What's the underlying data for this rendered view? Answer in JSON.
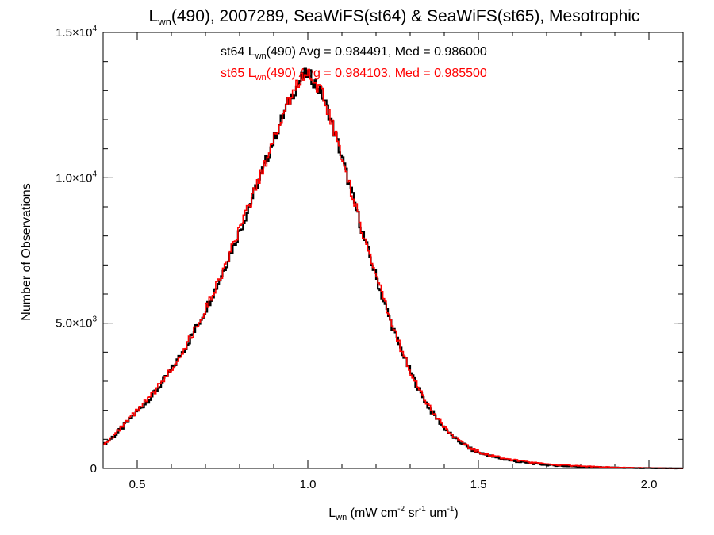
{
  "chart_data": {
    "type": "line",
    "title_parts": {
      "prefix": "L",
      "sub": "wn",
      "rest": "(490), 2007289, SeaWiFS(st64) & SeaWiFS(st65), Mesotrophic"
    },
    "xlabel_parts": {
      "base": "L",
      "sub": "wn",
      "rest1": " (mW cm",
      "sup1": "-2",
      "rest2": " sr",
      "sup2": "-1",
      "rest3": " um",
      "sup3": "-1",
      "rest4": ")"
    },
    "ylabel": "Number of Observations",
    "xlim": [
      0.4,
      2.1
    ],
    "ylim": [
      0,
      15000
    ],
    "x_ticks": [
      {
        "value": 0.5,
        "label": "0.5"
      },
      {
        "value": 1.0,
        "label": "1.0"
      },
      {
        "value": 1.5,
        "label": "1.5"
      },
      {
        "value": 2.0,
        "label": "2.0"
      }
    ],
    "y_ticks": [
      {
        "value": 0,
        "mantissa": "0",
        "exp": ""
      },
      {
        "value": 5000,
        "mantissa": "5.0×10",
        "exp": "3"
      },
      {
        "value": 10000,
        "mantissa": "1.0×10",
        "exp": "4"
      },
      {
        "value": 15000,
        "mantissa": "1.5×10",
        "exp": "4"
      }
    ],
    "bin_width": 0.005,
    "series": [
      {
        "label": "st64",
        "color": "#000000",
        "annotation": {
          "pre": "st64 L",
          "sub": "wn",
          "post": "(490) Avg = 0.984491, Med = 0.986000"
        },
        "x": [
          0.4,
          0.42,
          0.44,
          0.46,
          0.48,
          0.5,
          0.52,
          0.54,
          0.56,
          0.58,
          0.6,
          0.62,
          0.64,
          0.66,
          0.68,
          0.7,
          0.72,
          0.74,
          0.76,
          0.78,
          0.8,
          0.82,
          0.84,
          0.86,
          0.88,
          0.9,
          0.92,
          0.94,
          0.96,
          0.98,
          1.0,
          1.02,
          1.04,
          1.06,
          1.08,
          1.1,
          1.12,
          1.14,
          1.16,
          1.18,
          1.2,
          1.22,
          1.24,
          1.26,
          1.28,
          1.3,
          1.32,
          1.34,
          1.36,
          1.38,
          1.4,
          1.42,
          1.44,
          1.46,
          1.48,
          1.5,
          1.55,
          1.6,
          1.65,
          1.7,
          1.75,
          1.8,
          1.85,
          1.9,
          1.95,
          2.0,
          2.05,
          2.1
        ],
        "y": [
          800,
          1000,
          1200,
          1450,
          1700,
          1950,
          2200,
          2450,
          2750,
          3050,
          3400,
          3750,
          4150,
          4550,
          5000,
          5450,
          5950,
          6450,
          7000,
          7600,
          8150,
          8750,
          9400,
          10000,
          10650,
          11300,
          11900,
          12500,
          13000,
          13400,
          13600,
          13300,
          12900,
          12300,
          11500,
          10700,
          9850,
          9000,
          8150,
          7350,
          6600,
          5850,
          5150,
          4500,
          3900,
          3350,
          2850,
          2400,
          2000,
          1700,
          1400,
          1150,
          950,
          800,
          650,
          550,
          380,
          260,
          180,
          120,
          85,
          60,
          40,
          25,
          15,
          8,
          4,
          0
        ]
      },
      {
        "label": "st65",
        "color": "#ff0000",
        "annotation": {
          "pre": "st65 L",
          "sub": "wn",
          "post": "(490) Avg = 0.984103, Med = 0.985500"
        },
        "x": [
          0.4,
          0.42,
          0.44,
          0.46,
          0.48,
          0.5,
          0.52,
          0.54,
          0.56,
          0.58,
          0.6,
          0.62,
          0.64,
          0.66,
          0.68,
          0.7,
          0.72,
          0.74,
          0.76,
          0.78,
          0.8,
          0.82,
          0.84,
          0.86,
          0.88,
          0.9,
          0.92,
          0.94,
          0.96,
          0.98,
          1.0,
          1.02,
          1.04,
          1.06,
          1.08,
          1.1,
          1.12,
          1.14,
          1.16,
          1.18,
          1.2,
          1.22,
          1.24,
          1.26,
          1.28,
          1.3,
          1.32,
          1.34,
          1.36,
          1.38,
          1.4,
          1.42,
          1.44,
          1.46,
          1.48,
          1.5,
          1.55,
          1.6,
          1.65,
          1.7,
          1.75,
          1.8,
          1.85,
          1.9,
          1.95,
          2.0,
          2.05,
          2.1
        ],
        "y": [
          820,
          1020,
          1230,
          1480,
          1730,
          1980,
          2230,
          2480,
          2780,
          3080,
          3430,
          3780,
          4180,
          4580,
          5030,
          5480,
          5980,
          6480,
          7030,
          7630,
          8180,
          8780,
          9430,
          10030,
          10680,
          11330,
          11930,
          12530,
          13030,
          13430,
          13630,
          13330,
          12930,
          12330,
          11530,
          10730,
          9880,
          9030,
          8180,
          7380,
          6630,
          5880,
          5180,
          4530,
          3930,
          3380,
          2880,
          2430,
          2030,
          1730,
          1430,
          1180,
          980,
          830,
          680,
          580,
          410,
          290,
          210,
          150,
          110,
          80,
          55,
          35,
          22,
          12,
          6,
          0
        ]
      }
    ]
  }
}
